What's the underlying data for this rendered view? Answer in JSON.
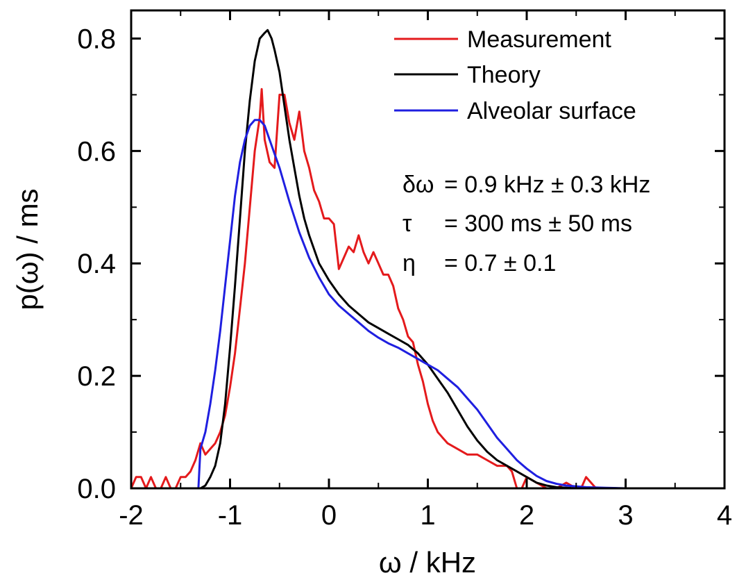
{
  "chart_data": {
    "type": "line",
    "title": "",
    "xlabel": "ω / kHz",
    "ylabel": "p(ω) / ms",
    "xlim": [
      -2,
      4
    ],
    "ylim": [
      0,
      0.85
    ],
    "xticks": [
      -2,
      -1,
      0,
      1,
      2,
      3,
      4
    ],
    "xtick_labels": [
      "-2",
      "-1",
      "0",
      "1",
      "2",
      "3",
      "4"
    ],
    "yticks": [
      0,
      0.2,
      0.4,
      0.6,
      0.8
    ],
    "ytick_labels": [
      "0.0",
      "0.2",
      "0.4",
      "0.6",
      "0.8"
    ],
    "grid": false,
    "legend_position": "top-right",
    "series": [
      {
        "name": "Measurement",
        "color": "#e41a1c",
        "x": [
          -2.0,
          -1.95,
          -1.9,
          -1.85,
          -1.8,
          -1.75,
          -1.7,
          -1.65,
          -1.6,
          -1.55,
          -1.5,
          -1.45,
          -1.4,
          -1.35,
          -1.3,
          -1.25,
          -1.2,
          -1.15,
          -1.1,
          -1.05,
          -1.0,
          -0.95,
          -0.9,
          -0.85,
          -0.8,
          -0.75,
          -0.7,
          -0.68,
          -0.65,
          -0.6,
          -0.55,
          -0.5,
          -0.45,
          -0.4,
          -0.35,
          -0.3,
          -0.25,
          -0.2,
          -0.15,
          -0.1,
          -0.05,
          0.0,
          0.05,
          0.1,
          0.15,
          0.2,
          0.25,
          0.3,
          0.35,
          0.4,
          0.45,
          0.5,
          0.55,
          0.6,
          0.65,
          0.7,
          0.75,
          0.8,
          0.85,
          0.9,
          0.95,
          1.0,
          1.05,
          1.1,
          1.15,
          1.2,
          1.3,
          1.4,
          1.5,
          1.6,
          1.7,
          1.8,
          1.85,
          1.9,
          1.95,
          2.0,
          2.1,
          2.2,
          2.3,
          2.4,
          2.5,
          2.55,
          2.6,
          2.7,
          2.8,
          2.9,
          3.0,
          3.1,
          3.2
        ],
        "y": [
          0.0,
          0.02,
          0.02,
          0.0,
          0.02,
          0.0,
          0.0,
          0.02,
          0.0,
          0.0,
          0.02,
          0.02,
          0.03,
          0.05,
          0.08,
          0.06,
          0.07,
          0.08,
          0.1,
          0.13,
          0.18,
          0.24,
          0.32,
          0.4,
          0.5,
          0.6,
          0.66,
          0.71,
          0.62,
          0.58,
          0.57,
          0.7,
          0.7,
          0.65,
          0.62,
          0.67,
          0.6,
          0.57,
          0.53,
          0.51,
          0.48,
          0.48,
          0.47,
          0.39,
          0.41,
          0.43,
          0.42,
          0.45,
          0.42,
          0.4,
          0.42,
          0.4,
          0.38,
          0.38,
          0.36,
          0.32,
          0.3,
          0.27,
          0.26,
          0.22,
          0.19,
          0.15,
          0.12,
          0.1,
          0.09,
          0.08,
          0.07,
          0.06,
          0.06,
          0.05,
          0.04,
          0.04,
          0.03,
          0.0,
          0.0,
          0.02,
          0.01,
          0.0,
          0.0,
          0.01,
          0.0,
          0.0,
          0.02,
          0.0,
          0.0,
          0.0,
          0.0,
          0.0,
          0.0
        ]
      },
      {
        "name": "Theory",
        "color": "#000000",
        "x": [
          -1.4,
          -1.3,
          -1.25,
          -1.2,
          -1.15,
          -1.1,
          -1.05,
          -1.0,
          -0.95,
          -0.9,
          -0.85,
          -0.8,
          -0.75,
          -0.7,
          -0.65,
          -0.62,
          -0.58,
          -0.55,
          -0.5,
          -0.45,
          -0.4,
          -0.35,
          -0.3,
          -0.25,
          -0.2,
          -0.1,
          0.0,
          0.1,
          0.2,
          0.3,
          0.4,
          0.5,
          0.6,
          0.7,
          0.8,
          0.9,
          1.0,
          1.1,
          1.2,
          1.3,
          1.4,
          1.5,
          1.6,
          1.7,
          1.8,
          1.9,
          2.0,
          2.1,
          2.2,
          2.3,
          2.5
        ],
        "y": [
          0.0,
          0.0,
          0.005,
          0.02,
          0.04,
          0.08,
          0.15,
          0.25,
          0.36,
          0.48,
          0.6,
          0.69,
          0.76,
          0.8,
          0.81,
          0.815,
          0.8,
          0.78,
          0.74,
          0.68,
          0.62,
          0.57,
          0.52,
          0.48,
          0.45,
          0.4,
          0.37,
          0.345,
          0.325,
          0.31,
          0.295,
          0.285,
          0.275,
          0.265,
          0.255,
          0.24,
          0.22,
          0.195,
          0.17,
          0.14,
          0.11,
          0.085,
          0.065,
          0.05,
          0.04,
          0.03,
          0.02,
          0.01,
          0.005,
          0.002,
          0.0
        ]
      },
      {
        "name": "Alveolar surface",
        "color": "#1f1fe0",
        "x": [
          -1.4,
          -1.32,
          -1.3,
          -1.25,
          -1.2,
          -1.15,
          -1.1,
          -1.05,
          -1.0,
          -0.95,
          -0.9,
          -0.85,
          -0.8,
          -0.75,
          -0.7,
          -0.65,
          -0.6,
          -0.55,
          -0.5,
          -0.4,
          -0.3,
          -0.2,
          -0.1,
          0.0,
          0.1,
          0.2,
          0.3,
          0.4,
          0.5,
          0.6,
          0.7,
          0.8,
          0.9,
          1.0,
          1.1,
          1.2,
          1.3,
          1.4,
          1.5,
          1.6,
          1.7,
          1.8,
          1.9,
          2.0,
          2.1,
          2.2,
          2.3,
          2.4,
          2.6,
          2.8,
          3.0,
          3.4
        ],
        "y": [
          0.0,
          0.0,
          0.07,
          0.1,
          0.15,
          0.21,
          0.28,
          0.36,
          0.44,
          0.52,
          0.58,
          0.62,
          0.645,
          0.655,
          0.655,
          0.645,
          0.62,
          0.595,
          0.57,
          0.51,
          0.455,
          0.41,
          0.375,
          0.345,
          0.325,
          0.31,
          0.295,
          0.28,
          0.268,
          0.258,
          0.25,
          0.24,
          0.23,
          0.22,
          0.21,
          0.195,
          0.18,
          0.16,
          0.14,
          0.115,
          0.09,
          0.07,
          0.05,
          0.035,
          0.022,
          0.013,
          0.008,
          0.005,
          0.002,
          0.001,
          0.0,
          0.0
        ]
      }
    ],
    "annotations": [
      {
        "symbol": "δω",
        "text": "= 0.9 kHz ± 0.3 kHz"
      },
      {
        "symbol": "τ",
        "text": "= 300 ms ± 50 ms"
      },
      {
        "symbol": "η",
        "text": "= 0.7 ± 0.1"
      }
    ]
  }
}
